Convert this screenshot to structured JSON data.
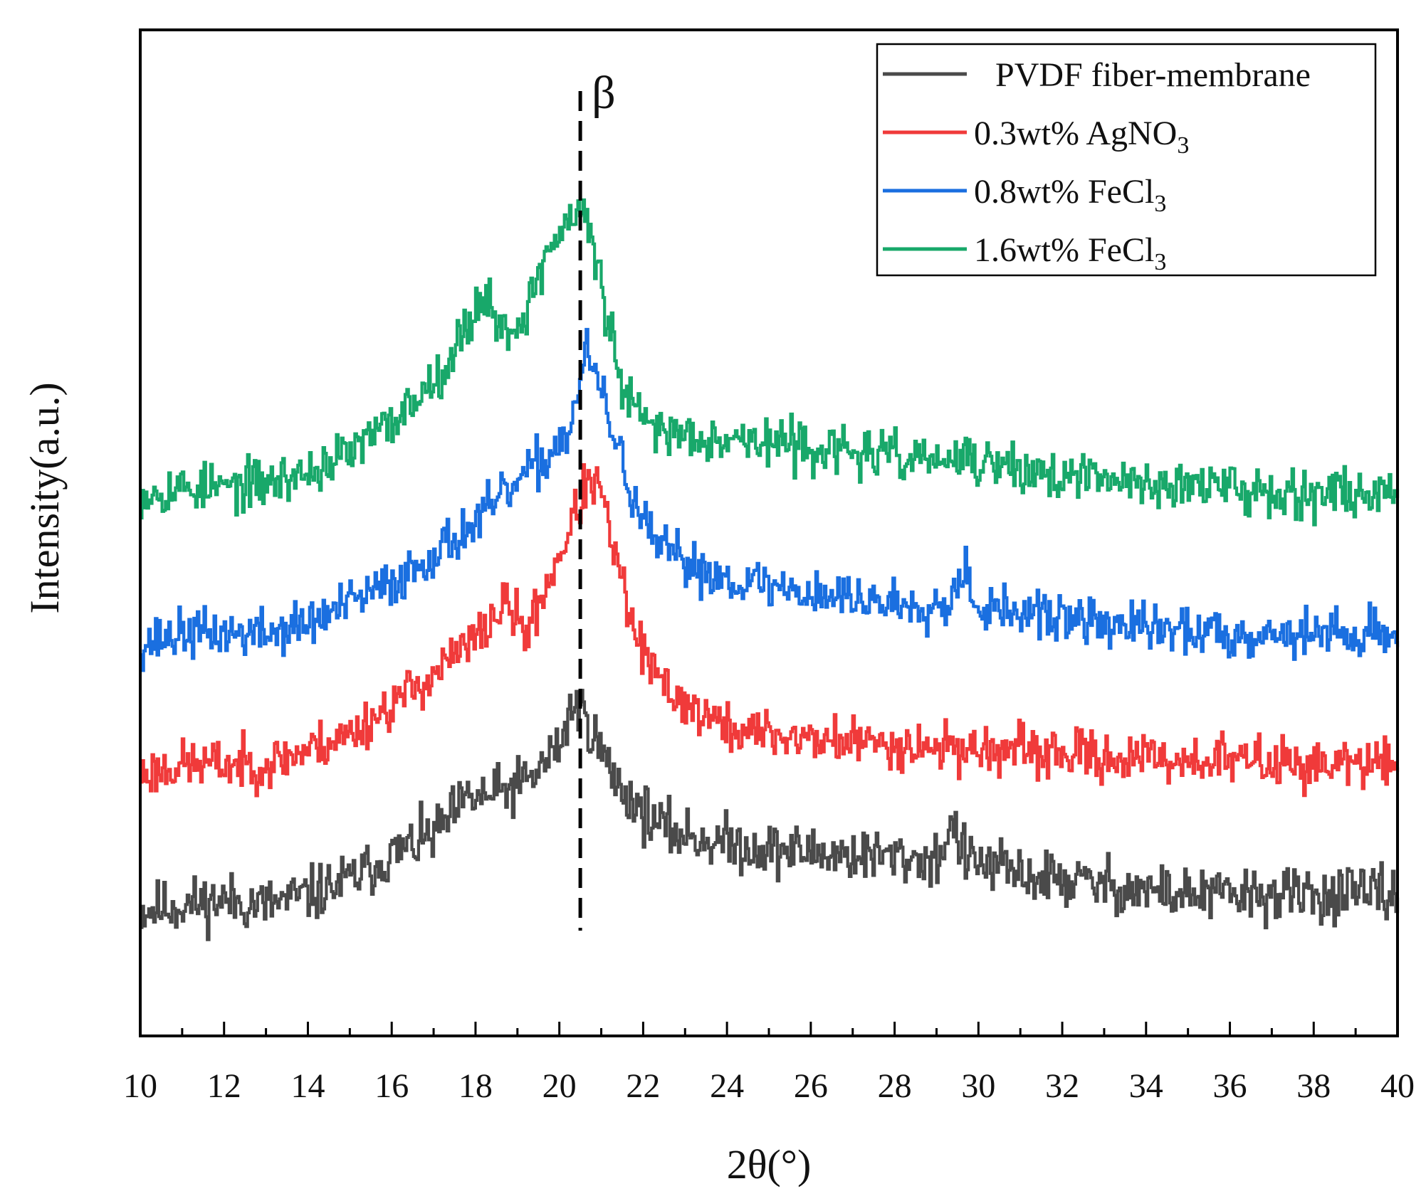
{
  "chart_data": {
    "type": "line",
    "title": "",
    "xlabel": "2θ(°)",
    "ylabel": "Intensity(a.u.)",
    "xlim": [
      10,
      40
    ],
    "ylim": [
      0,
      10
    ],
    "x_ticks": [
      "10",
      "12",
      "14",
      "16",
      "18",
      "20",
      "22",
      "24",
      "26",
      "28",
      "30",
      "32",
      "34",
      "36",
      "38",
      "40"
    ],
    "y_ticks": [],
    "grid": false,
    "legend_position": "top-right",
    "annotation": {
      "label": "β",
      "x": 20.5,
      "style": "dashed vertical line"
    },
    "series": [
      {
        "name": "PVDF fiber-membrane",
        "name_main": "PVDF fiber-membrane",
        "name_sub": "",
        "color": "#4a4a4a",
        "noise": 0.17,
        "seed": 11,
        "x": [
          10,
          11,
          12,
          13,
          14,
          15,
          16,
          17,
          17.8,
          18.5,
          19.3,
          20.0,
          20.3,
          20.6,
          20.9,
          21.3,
          21.8,
          22.5,
          23.5,
          25,
          27,
          29,
          29.35,
          29.7,
          31,
          33,
          35,
          37,
          40
        ],
        "y": [
          1.25,
          1.3,
          1.35,
          1.3,
          1.4,
          1.55,
          1.8,
          2.0,
          2.35,
          2.4,
          2.55,
          2.9,
          3.3,
          3.2,
          2.9,
          2.55,
          2.3,
          2.05,
          1.95,
          1.85,
          1.8,
          1.75,
          2.1,
          1.75,
          1.6,
          1.5,
          1.4,
          1.4,
          1.4
        ]
      },
      {
        "name": "0.3wt% AgNO3",
        "name_main": "0.3wt% AgNO",
        "name_sub": "3",
        "color": "#f03a3a",
        "noise": 0.15,
        "seed": 23,
        "x": [
          10,
          11,
          12,
          13,
          14,
          15,
          16,
          17,
          18,
          18.7,
          19.2,
          19.7,
          20.2,
          20.6,
          20.9,
          21.3,
          21.7,
          22.2,
          23,
          24,
          26,
          28,
          30,
          32,
          34,
          36,
          38,
          40
        ],
        "y": [
          2.6,
          2.7,
          2.7,
          2.7,
          2.85,
          3.0,
          3.3,
          3.6,
          3.95,
          4.3,
          4.0,
          4.5,
          5.0,
          5.45,
          5.5,
          4.8,
          4.1,
          3.6,
          3.3,
          3.05,
          2.95,
          2.9,
          2.85,
          2.8,
          2.75,
          2.75,
          2.7,
          2.7
        ]
      },
      {
        "name": "0.8wt% FeCl3",
        "name_main": "0.8wt% FeCl",
        "name_sub": "3",
        "color": "#1a6fe0",
        "noise": 0.15,
        "seed": 37,
        "x": [
          10,
          11,
          12,
          13,
          14,
          15,
          16,
          17,
          18,
          19,
          19.8,
          20.3,
          20.6,
          20.9,
          21.3,
          21.7,
          22.2,
          23,
          24,
          26,
          28,
          29.3,
          29.6,
          30,
          32,
          34,
          36,
          38,
          40
        ],
        "y": [
          3.9,
          4.0,
          4.0,
          4.0,
          4.1,
          4.3,
          4.5,
          4.8,
          5.1,
          5.5,
          5.8,
          6.1,
          6.8,
          6.5,
          5.95,
          5.4,
          4.9,
          4.7,
          4.55,
          4.4,
          4.3,
          4.3,
          4.7,
          4.25,
          4.15,
          4.05,
          4.0,
          4.0,
          4.0
        ]
      },
      {
        "name": "1.6wt% FeCl3",
        "name_main": "1.6wt% FeCl",
        "name_sub": "3",
        "color": "#18a86a",
        "noise": 0.15,
        "seed": 53,
        "x": [
          10,
          11,
          12,
          13,
          14,
          15,
          16,
          16.7,
          17.4,
          18.2,
          18.6,
          19.1,
          19.7,
          20.2,
          20.6,
          21.0,
          21.5,
          22.0,
          22.7,
          24,
          26,
          28,
          30,
          32,
          34,
          36,
          38,
          40
        ],
        "y": [
          5.4,
          5.45,
          5.45,
          5.5,
          5.6,
          5.8,
          6.1,
          6.4,
          6.75,
          7.4,
          7.0,
          7.1,
          7.8,
          8.1,
          8.2,
          7.4,
          6.4,
          6.1,
          6.0,
          5.95,
          5.85,
          5.75,
          5.7,
          5.55,
          5.5,
          5.45,
          5.4,
          5.4
        ]
      }
    ]
  }
}
